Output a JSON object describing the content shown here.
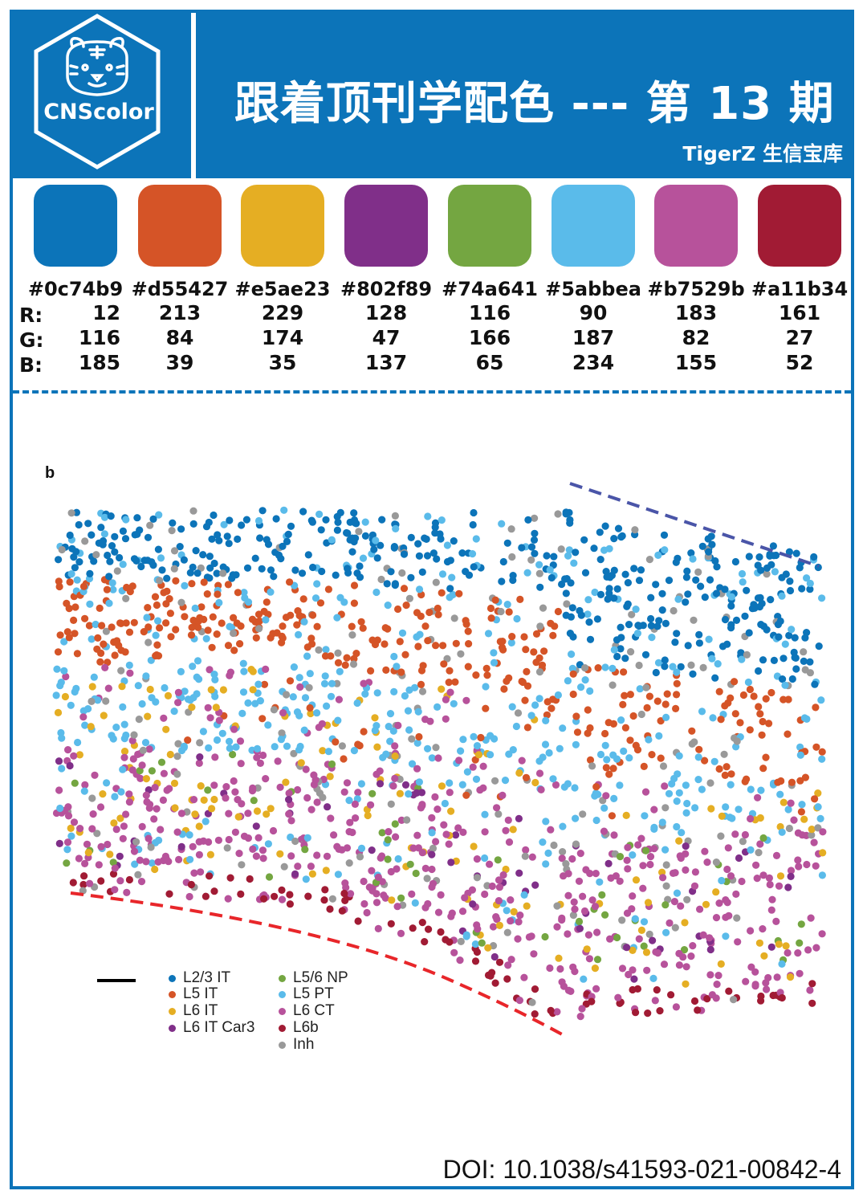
{
  "header": {
    "brand": "CNScolor",
    "title": "跟着顶刊学配色 --- 第 13 期",
    "subtitle": "TigerZ 生信宝库"
  },
  "labels": {
    "r": "R:",
    "g": "G:",
    "b": "B:"
  },
  "palette": [
    {
      "hex": "#0c74b9",
      "r": "12",
      "g": "116",
      "b": "185"
    },
    {
      "hex": "#d55427",
      "r": "213",
      "g": "84",
      "b": "39"
    },
    {
      "hex": "#e5ae23",
      "r": "229",
      "g": "174",
      "b": "35"
    },
    {
      "hex": "#802f89",
      "r": "128",
      "g": "47",
      "b": "137"
    },
    {
      "hex": "#74a641",
      "r": "116",
      "g": "166",
      "b": "65"
    },
    {
      "hex": "#5abbea",
      "r": "90",
      "g": "187",
      "b": "234"
    },
    {
      "hex": "#b7529b",
      "r": "183",
      "g": "82",
      "b": "155"
    },
    {
      "hex": "#a11b34",
      "r": "161",
      "g": "27",
      "b": "52"
    }
  ],
  "figure": {
    "panel_letter": "b",
    "legend": [
      {
        "label": "L2/3 IT",
        "color": "#0c74b9"
      },
      {
        "label": "L5 IT",
        "color": "#d55427"
      },
      {
        "label": "L6 IT",
        "color": "#e5ae23"
      },
      {
        "label": "L6 IT Car3",
        "color": "#802f89"
      },
      {
        "label": "L5/6 NP",
        "color": "#74a641"
      },
      {
        "label": "L5 PT",
        "color": "#5abbea"
      },
      {
        "label": "L6 CT",
        "color": "#b7529b"
      },
      {
        "label": "L6b",
        "color": "#a11b34"
      },
      {
        "label": "Inh",
        "color": "#999999"
      }
    ],
    "top_boundary_color": "#4a55a8",
    "bottom_boundary_color": "#e8262a"
  },
  "doi": "DOI: 10.1038/s41593-021-00842-4"
}
